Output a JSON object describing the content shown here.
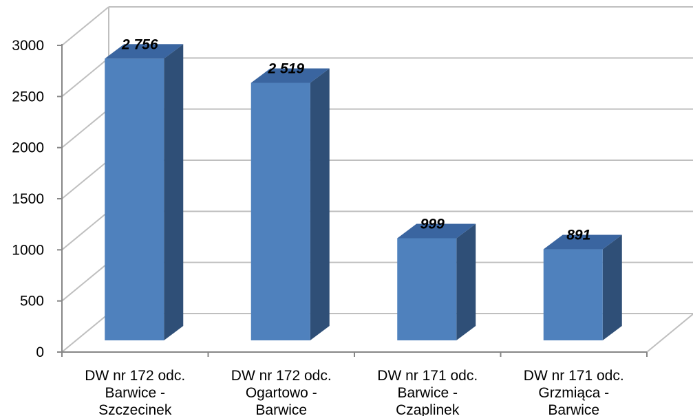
{
  "chart_data": {
    "type": "bar",
    "style": "3d-column",
    "categories": [
      [
        "DW nr 172 odc.",
        "Barwice -",
        "Szczecinek"
      ],
      [
        "DW nr 172 odc.",
        "Ogartowo -",
        "Barwice"
      ],
      [
        "DW nr 171 odc.",
        "Barwice -",
        "Czaplinek"
      ],
      [
        "DW nr 171 odc.",
        "Grzmiąca -",
        "Barwice"
      ]
    ],
    "values": [
      2756,
      2519,
      999,
      891
    ],
    "value_labels": [
      "2 756",
      "2 519",
      "999",
      "891"
    ],
    "ylim": [
      0,
      3000
    ],
    "yticks": [
      "0",
      "500",
      "1000",
      "1500",
      "2000",
      "2500",
      "3000"
    ],
    "grid": true,
    "legend": "none",
    "colors": {
      "front": "#4f81bd",
      "side": "#2f4f77",
      "top": "#3a65a0",
      "grid": "#bfbfbf",
      "axis": "#868686"
    }
  }
}
